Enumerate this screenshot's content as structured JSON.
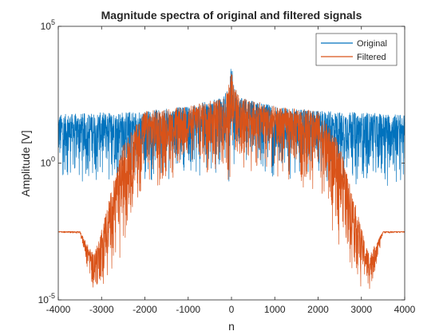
{
  "chart_data": {
    "type": "line",
    "title": "Magnitude spectra of original and filtered signals",
    "xlabel": "n",
    "ylabel": "Amplitude [V]",
    "xlim": [
      -4000,
      4000
    ],
    "ylim": [
      1e-05,
      100000.0
    ],
    "yscale": "log",
    "grid": false,
    "legend_position": "top-right",
    "xticks": [
      {
        "value": -4000,
        "label": "-4000"
      },
      {
        "value": -3000,
        "label": "-3000"
      },
      {
        "value": -2000,
        "label": "-2000"
      },
      {
        "value": -1000,
        "label": "-1000"
      },
      {
        "value": 0,
        "label": "0"
      },
      {
        "value": 1000,
        "label": "1000"
      },
      {
        "value": 2000,
        "label": "2000"
      },
      {
        "value": 3000,
        "label": "3000"
      },
      {
        "value": 4000,
        "label": "4000"
      }
    ],
    "yticks": [
      {
        "value": 1e-05,
        "base": "10",
        "exp": "-5"
      },
      {
        "value": 1,
        "base": "10",
        "exp": "0"
      },
      {
        "value": 100000.0,
        "base": "10",
        "exp": "5"
      }
    ],
    "series": [
      {
        "name": "Original",
        "color": "#0072BD",
        "envelope": {
          "x": [
            -4000,
            -3000,
            -2000,
            -1000,
            -200,
            -50,
            0,
            50,
            200,
            1000,
            2000,
            3000,
            4000
          ],
          "upper": [
            60,
            70,
            80,
            120,
            250,
            800,
            5000,
            800,
            250,
            120,
            80,
            70,
            60
          ],
          "lower": [
            0.15,
            0.15,
            0.2,
            0.3,
            0.4,
            0.2,
            0.3,
            0.2,
            0.4,
            0.3,
            0.2,
            0.15,
            0.15
          ]
        }
      },
      {
        "name": "Filtered",
        "color": "#D95319",
        "envelope": {
          "x": [
            -4000,
            -3500,
            -3200,
            -3100,
            -2500,
            -2000,
            -1000,
            -200,
            -50,
            0,
            50,
            200,
            1000,
            2000,
            2500,
            3100,
            3200,
            3500,
            4000
          ],
          "upper": [
            0.0032,
            0.0032,
            0.0005,
            0.001,
            5,
            80,
            120,
            250,
            800,
            5000,
            800,
            250,
            120,
            80,
            5,
            0.001,
            0.0005,
            0.0032,
            0.0032
          ],
          "lower": [
            0.0029,
            0.0026,
            1e-05,
            1e-05,
            0.0006,
            0.08,
            0.3,
            0.4,
            0.2,
            0.3,
            0.2,
            0.4,
            0.3,
            0.08,
            0.0006,
            1e-05,
            1e-05,
            0.0026,
            0.0029
          ]
        }
      }
    ]
  }
}
